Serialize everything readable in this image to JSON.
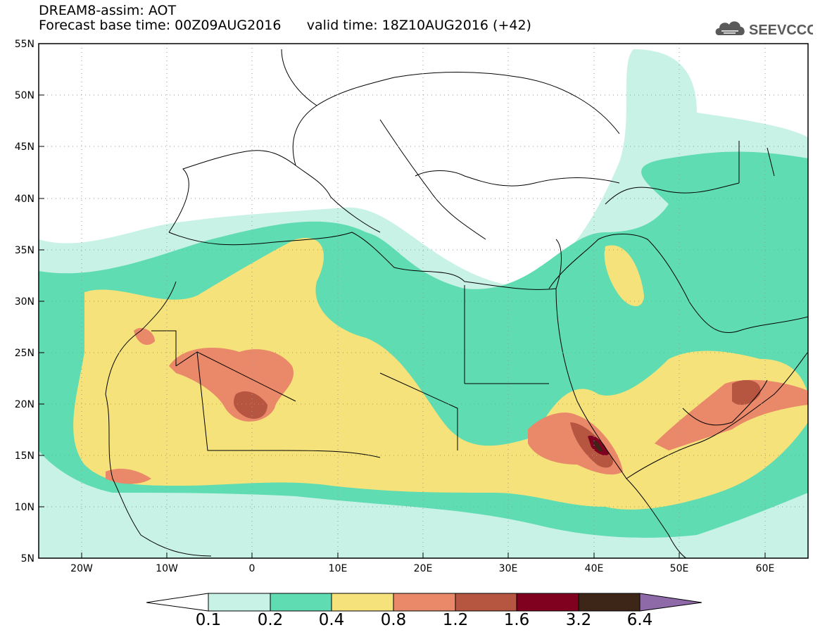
{
  "header": {
    "line1": "DREAM8-assim: AOT",
    "forecast_base": "Forecast base time: 00Z09AUG2016",
    "valid_time": "valid time: 18Z10AUG2016 (+42)"
  },
  "logo": {
    "text": "SEEVCCC",
    "icon": "cloud-icon"
  },
  "map": {
    "lat_labels": [
      "55N",
      "50N",
      "45N",
      "40N",
      "35N",
      "30N",
      "25N",
      "20N",
      "15N",
      "10N",
      "5N"
    ],
    "lon_labels": [
      "20W",
      "10W",
      "0",
      "10E",
      "20E",
      "30E",
      "40E",
      "50E",
      "60E"
    ],
    "lon_range": [
      -25,
      65
    ],
    "lat_range": [
      5,
      55
    ],
    "grid": "dotted"
  },
  "colorbar": {
    "labels": [
      "0.1",
      "0.2",
      "0.4",
      "0.8",
      "1.2",
      "1.6",
      "3.2",
      "6.4"
    ],
    "colors": [
      "#ffffff",
      "#c9f2e6",
      "#5fdcb2",
      "#f5e27a",
      "#e9896a",
      "#b65640",
      "#800020",
      "#3d2617",
      "#8e6aa8"
    ]
  }
}
